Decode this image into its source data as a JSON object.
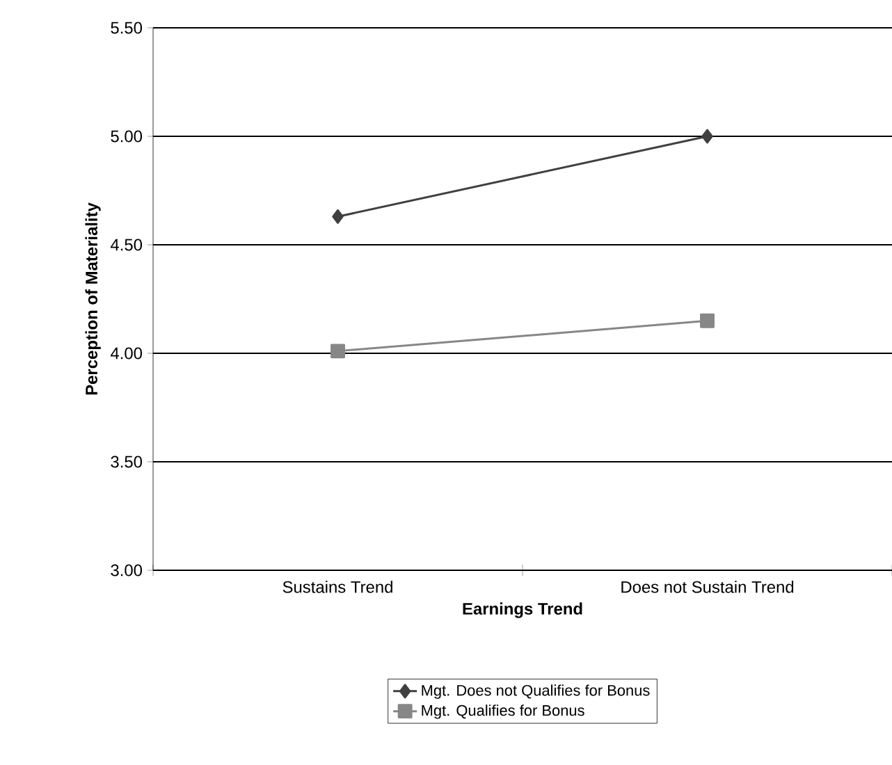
{
  "chart_data": {
    "type": "line",
    "xlabel": "Earnings Trend",
    "ylabel": "Perception of Materiality",
    "categories": [
      "Sustains Trend",
      "Does not Sustain Trend"
    ],
    "series": [
      {
        "name": "Mgt. Does not Qualifies for Bonus",
        "color": "#404040",
        "marker": "diamond",
        "values": [
          4.63,
          5.0
        ]
      },
      {
        "name": "Mgt. Qualifies for Bonus",
        "color": "#878787",
        "marker": "square",
        "values": [
          4.01,
          4.15
        ]
      }
    ],
    "ylim": [
      3.0,
      5.5
    ],
    "yticks": [
      {
        "value": 3.0,
        "label": "3.00"
      },
      {
        "value": 3.5,
        "label": "3.50"
      },
      {
        "value": 4.0,
        "label": "4.00"
      },
      {
        "value": 4.5,
        "label": "4.50"
      },
      {
        "value": 5.0,
        "label": "5.00"
      },
      {
        "value": 5.5,
        "label": "5.50"
      }
    ],
    "grid": "y",
    "legend": "bottom"
  }
}
